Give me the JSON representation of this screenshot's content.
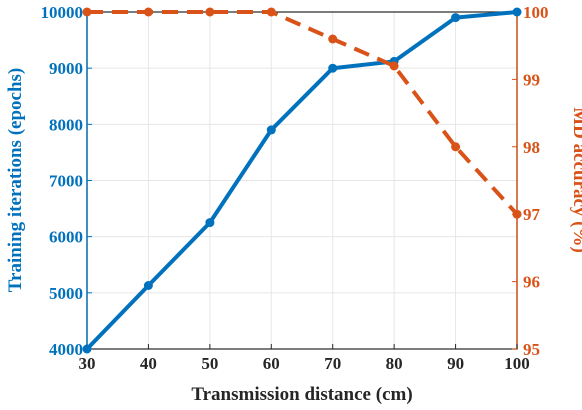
{
  "chart_data": {
    "type": "line",
    "xlabel": "Transmission distance (cm)",
    "x": [
      30,
      40,
      50,
      60,
      70,
      80,
      90,
      100
    ],
    "xlim": [
      30,
      100
    ],
    "xticks": [
      "30",
      "40",
      "50",
      "60",
      "70",
      "80",
      "90",
      "100"
    ],
    "grid": true,
    "left_axis": {
      "label": "Training iterations (epochs)",
      "ylim": [
        4000,
        10000
      ],
      "ticks": [
        "4000",
        "5000",
        "6000",
        "7000",
        "8000",
        "9000",
        "10000"
      ],
      "color": "#0072BD"
    },
    "right_axis": {
      "label": "MD accuracy (%)",
      "ylim": [
        95,
        100
      ],
      "ticks": [
        "95",
        "96",
        "97",
        "98",
        "99",
        "100"
      ],
      "color": "#D95319"
    },
    "series": [
      {
        "axis": "left",
        "style": "solid",
        "marker": "circle",
        "color": "#0072BD",
        "values": [
          4000,
          5130,
          6250,
          7900,
          9000,
          9120,
          9900,
          10000
        ]
      },
      {
        "axis": "right",
        "style": "dashed",
        "marker": "circle",
        "color": "#D95319",
        "values": [
          100,
          100,
          100,
          100,
          99.6,
          99.2,
          98.0,
          97.0
        ]
      }
    ]
  }
}
